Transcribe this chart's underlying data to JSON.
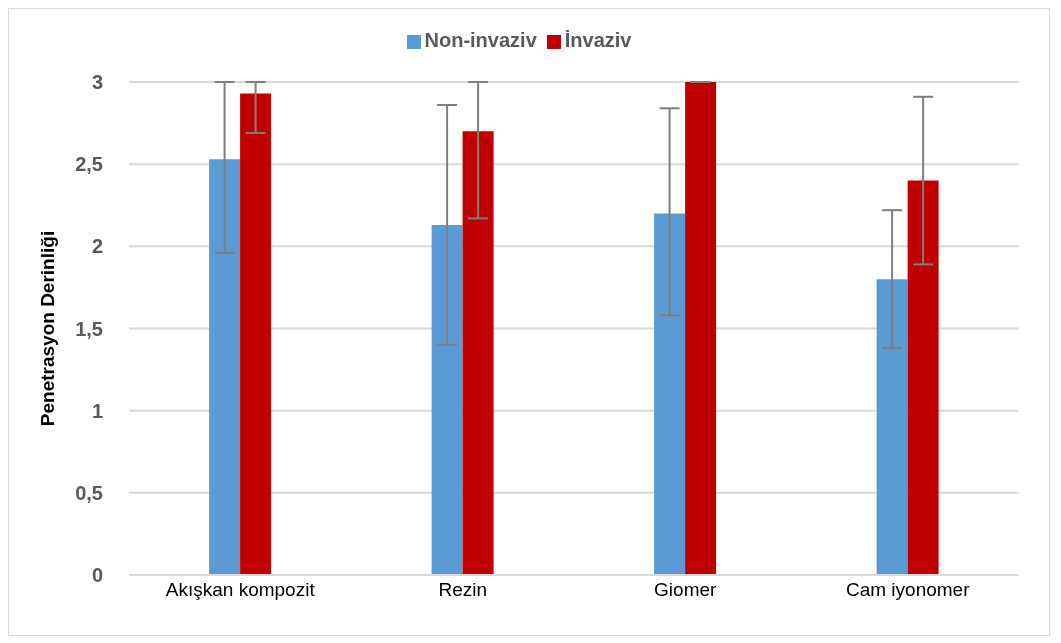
{
  "chart_data": {
    "type": "bar",
    "ylabel": "Penetrasyon Derinliği",
    "categories": [
      "Akışkan kompozit",
      "Rezin",
      "Giomer",
      "Cam iyonomer"
    ],
    "series": [
      {
        "name": "Non-invaziv",
        "color": "#5b9bd5",
        "values": [
          2.53,
          2.13,
          2.2,
          1.8
        ],
        "errors": [
          [
            1.96,
            3
          ],
          [
            1.4,
            2.86
          ],
          [
            1.58,
            2.84
          ],
          [
            1.38,
            2.22
          ]
        ]
      },
      {
        "name": "İnvaziv",
        "color": "#c00000",
        "values": [
          2.93,
          2.7,
          3,
          2.4
        ],
        "errors": [
          [
            2.69,
            3
          ],
          [
            2.17,
            3
          ],
          0,
          [
            1.89,
            2.91
          ]
        ]
      }
    ],
    "ylim": [
      0,
      3
    ],
    "yticks": [
      0,
      {
        "value": 0.5,
        "label": "0,5"
      },
      1,
      {
        "value": 1.5,
        "label": "1,5"
      },
      2,
      {
        "value": 2.5,
        "label": "2,5"
      },
      3
    ],
    "grid": "y",
    "legend": "top"
  }
}
